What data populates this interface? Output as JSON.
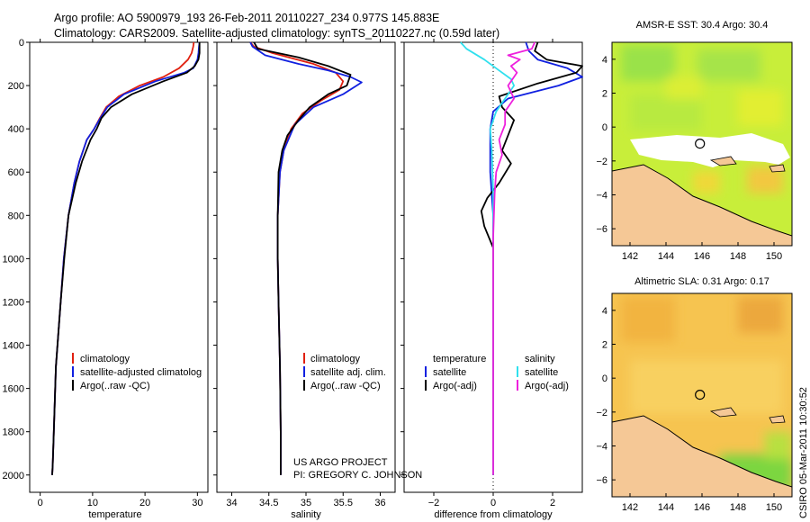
{
  "header": {
    "line1": "Argo profile: AO 5900979_193 26-Feb-2011 20110227_234 0.977S 145.883E",
    "line2": "Climatology: CARS2009. Satellite-adjusted climatology: synTS_20110227.nc (0.59d later)"
  },
  "colors": {
    "climatology": "#e02010",
    "satellite": "#1020e0",
    "argo": "#000000",
    "sat_sal": "#30e0ee",
    "argo_sal": "#ee20dd",
    "land": "#f5c896"
  },
  "chart_data": [
    {
      "type": "line",
      "xlabel": "temperature",
      "ylabel": "",
      "xlim": [
        -2,
        32
      ],
      "ylim": [
        2080,
        0
      ],
      "xticks": [
        0,
        10,
        20,
        30
      ],
      "yticks": [
        0,
        200,
        400,
        600,
        800,
        1000,
        1200,
        1400,
        1600,
        1800,
        2000
      ],
      "legend": [
        "climatology",
        "satellite-adjusted climatolog",
        "Argo(..raw -QC)"
      ],
      "series": [
        {
          "name": "climatology",
          "color": "#e02010",
          "x": [
            29.3,
            29.2,
            28.9,
            28.2,
            26.5,
            23.5,
            19.0,
            15.0,
            12.6,
            11.4,
            10.3,
            8.9,
            7.5,
            6.5,
            5.4,
            4.5,
            3.9,
            3.0,
            2.6,
            2.4,
            2.3
          ],
          "y": [
            0,
            20,
            50,
            80,
            120,
            160,
            200,
            250,
            300,
            350,
            400,
            450,
            550,
            650,
            800,
            1000,
            1200,
            1500,
            1800,
            1950,
            2000
          ]
        },
        {
          "name": "satellite-adjusted climatolog",
          "color": "#1020e0",
          "x": [
            30.4,
            30.3,
            30.2,
            30.0,
            29.2,
            27.5,
            22.0,
            16.0,
            12.8,
            11.5,
            10.3,
            8.9,
            7.5,
            6.5,
            5.4,
            4.5,
            3.9,
            3.0,
            2.6,
            2.4,
            2.3
          ],
          "y": [
            0,
            20,
            50,
            80,
            120,
            140,
            180,
            240,
            300,
            350,
            400,
            450,
            550,
            650,
            800,
            1000,
            1200,
            1500,
            1800,
            1950,
            2000
          ]
        },
        {
          "name": "Argo(..raw -QC)",
          "color": "#000000",
          "x": [
            30.4,
            30.4,
            30.4,
            30.2,
            29.5,
            28.0,
            23.5,
            17.5,
            13.5,
            11.7,
            10.8,
            9.6,
            8.0,
            6.8,
            5.4,
            4.6,
            3.9,
            3.0,
            2.6,
            2.4,
            2.3
          ],
          "y": [
            0,
            20,
            50,
            80,
            110,
            140,
            180,
            240,
            300,
            350,
            400,
            450,
            550,
            650,
            800,
            1000,
            1200,
            1500,
            1800,
            1950,
            2000
          ]
        }
      ]
    },
    {
      "type": "line",
      "xlabel": "salinity",
      "xlim": [
        33.8,
        36.2
      ],
      "ylim": [
        2080,
        0
      ],
      "xticks": [
        34,
        34.5,
        35,
        35.5,
        36
      ],
      "legend": [
        "climatology",
        "satellite adj. clim.",
        "Argo(..raw -QC)"
      ],
      "series": [
        {
          "name": "climatology",
          "color": "#e02010",
          "x": [
            34.25,
            34.3,
            34.55,
            35.1,
            35.4,
            35.5,
            35.45,
            35.2,
            34.95,
            34.8,
            34.7,
            34.65,
            34.62,
            34.62,
            34.63,
            34.65,
            34.66,
            34.66
          ],
          "y": [
            0,
            20,
            50,
            100,
            140,
            180,
            220,
            270,
            330,
            400,
            500,
            600,
            800,
            1000,
            1200,
            1500,
            1800,
            2000
          ]
        },
        {
          "name": "satellite adj. clim.",
          "color": "#1020e0",
          "x": [
            34.25,
            34.28,
            34.45,
            34.9,
            35.3,
            35.6,
            35.75,
            35.5,
            35.1,
            34.85,
            34.7,
            34.65,
            34.62,
            34.62,
            34.63,
            34.65,
            34.66,
            34.66
          ],
          "y": [
            0,
            20,
            60,
            100,
            130,
            160,
            185,
            240,
            300,
            380,
            500,
            600,
            800,
            1000,
            1200,
            1500,
            1800,
            2000
          ]
        },
        {
          "name": "Argo(..raw -QC)",
          "color": "#000000",
          "x": [
            34.3,
            34.35,
            34.9,
            35.3,
            35.6,
            35.55,
            35.3,
            35.05,
            34.9,
            34.75,
            34.68,
            34.63,
            34.62,
            34.62,
            34.63,
            34.65,
            34.66,
            34.66
          ],
          "y": [
            0,
            30,
            70,
            110,
            150,
            200,
            240,
            300,
            360,
            430,
            500,
            600,
            800,
            1000,
            1200,
            1500,
            1800,
            2000
          ]
        }
      ]
    },
    {
      "type": "line",
      "xlabel": "difference from climatology",
      "xlim": [
        -3,
        3
      ],
      "ylim": [
        2080,
        0
      ],
      "xticks": [
        -2,
        0,
        2
      ],
      "legend_temperature": {
        "title": "temperature",
        "items": [
          "satellite",
          "Argo(-adj)"
        ]
      },
      "legend_salinity": {
        "title": "salinity",
        "items": [
          "satellite",
          "Argo(-adj)"
        ]
      },
      "series": [
        {
          "name": "satellite",
          "group": "temperature",
          "color": "#1020e0",
          "x": [
            1.1,
            1.2,
            1.5,
            2.5,
            3.0,
            2.2,
            0.5,
            0.0,
            -0.1,
            -0.1,
            0.0,
            0.0,
            0.0,
            0.0,
            0.0
          ],
          "y": [
            0,
            40,
            80,
            120,
            160,
            200,
            260,
            320,
            400,
            600,
            800,
            1000,
            1400,
            1800,
            2000
          ]
        },
        {
          "name": "Argo(-adj)",
          "group": "temperature",
          "color": "#000000",
          "x": [
            1.5,
            1.4,
            1.8,
            3.0,
            2.8,
            1.5,
            0.2,
            0.3,
            0.7,
            0.5,
            0.3,
            0.6,
            0.2,
            -0.2,
            -0.4,
            -0.3,
            0.0,
            0.0,
            0.0,
            0.0
          ],
          "y": [
            0,
            40,
            80,
            110,
            140,
            190,
            250,
            300,
            360,
            430,
            500,
            560,
            650,
            720,
            780,
            850,
            950,
            1200,
            1600,
            2000
          ]
        },
        {
          "name": "satellite",
          "group": "salinity",
          "color": "#30e0ee",
          "x": [
            -1.1,
            -0.9,
            -0.3,
            0.2,
            0.6,
            0.7,
            0.4,
            0.1,
            -0.1,
            -0.05,
            0.0,
            0.0,
            0.0,
            0.0
          ],
          "y": [
            0,
            30,
            80,
            130,
            170,
            200,
            260,
            320,
            400,
            500,
            700,
            1000,
            1500,
            2000
          ]
        },
        {
          "name": "Argo(-adj)",
          "group": "salinity",
          "color": "#ee20dd",
          "x": [
            1.4,
            1.3,
            0.5,
            0.9,
            0.6,
            0.8,
            0.5,
            0.7,
            0.4,
            0.4,
            0.2,
            0.3,
            0.1,
            0.05,
            0.0,
            0.0,
            0.0
          ],
          "y": [
            0,
            30,
            60,
            80,
            110,
            140,
            200,
            260,
            320,
            380,
            450,
            520,
            600,
            700,
            900,
            1400,
            2000
          ]
        }
      ]
    },
    {
      "type": "heatmap",
      "title": "AMSR-E SST: 30.4 Argo: 30.4",
      "xlim": [
        141,
        151
      ],
      "ylim": [
        -7,
        5
      ],
      "xticks": [
        142,
        144,
        146,
        148,
        150
      ],
      "yticks": [
        -6,
        -4,
        -2,
        0,
        2,
        4
      ],
      "marker": {
        "lon": 145.883,
        "lat": -0.977
      }
    },
    {
      "type": "heatmap",
      "title": "Altimetric SLA: 0.31 Argo: 0.17",
      "xlim": [
        141,
        151
      ],
      "ylim": [
        -7,
        5
      ],
      "xticks": [
        142,
        144,
        146,
        148,
        150
      ],
      "yticks": [
        -6,
        -4,
        -2,
        0,
        2,
        4
      ],
      "marker": {
        "lon": 145.883,
        "lat": -0.977
      }
    }
  ],
  "project": {
    "line1": "US ARGO PROJECT",
    "line2": "PI: GREGORY C. JOHNSON"
  },
  "stamp": "CSIRO 05-Mar-2011 10:30:52"
}
